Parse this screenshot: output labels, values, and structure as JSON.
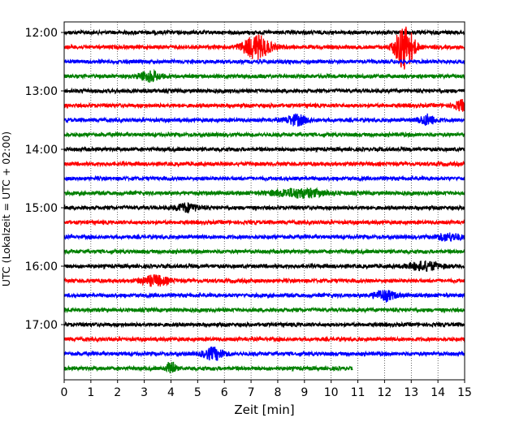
{
  "chart_data": {
    "type": "line",
    "xlabel": "Zeit  [min]",
    "ylabel": "UTC (Lokalzeit = UTC + 02:00)",
    "xlim": [
      0,
      15
    ],
    "x_ticks": [
      "0",
      "1",
      "2",
      "3",
      "4",
      "5",
      "6",
      "7",
      "8",
      "9",
      "10",
      "11",
      "12",
      "13",
      "14",
      "15"
    ],
    "y_ticks": [
      "12:00",
      "13:00",
      "14:00",
      "15:00",
      "16:00",
      "17:00"
    ],
    "grid": "vertical dotted",
    "trace_interval_min": 15,
    "start_time": "12:00",
    "last_trace_end_min": 10.8,
    "colors": [
      "#000000",
      "#ff0000",
      "#0000ff",
      "#008000"
    ],
    "traces": [
      {
        "start": "12:00",
        "color": "#000000",
        "events": []
      },
      {
        "start": "12:15",
        "color": "#ff0000",
        "events": [
          {
            "t": 7.2,
            "amp": 14,
            "w": 0.5
          },
          {
            "t": 12.75,
            "amp": 28,
            "w": 0.35
          }
        ]
      },
      {
        "start": "12:30",
        "color": "#0000ff",
        "events": []
      },
      {
        "start": "12:45",
        "color": "#008000",
        "events": [
          {
            "t": 3.2,
            "amp": 6,
            "w": 0.4
          }
        ]
      },
      {
        "start": "13:00",
        "color": "#000000",
        "events": []
      },
      {
        "start": "13:15",
        "color": "#ff0000",
        "events": [
          {
            "t": 14.9,
            "amp": 6,
            "w": 0.3
          }
        ]
      },
      {
        "start": "13:30",
        "color": "#0000ff",
        "events": [
          {
            "t": 8.7,
            "amp": 6,
            "w": 0.4
          },
          {
            "t": 13.6,
            "amp": 6,
            "w": 0.3
          }
        ]
      },
      {
        "start": "13:45",
        "color": "#008000",
        "events": []
      },
      {
        "start": "14:00",
        "color": "#000000",
        "events": []
      },
      {
        "start": "14:15",
        "color": "#ff0000",
        "events": []
      },
      {
        "start": "14:30",
        "color": "#0000ff",
        "events": []
      },
      {
        "start": "14:45",
        "color": "#008000",
        "events": [
          {
            "t": 8.8,
            "amp": 5,
            "w": 1.0
          }
        ]
      },
      {
        "start": "15:00",
        "color": "#000000",
        "events": [
          {
            "t": 4.6,
            "amp": 5,
            "w": 0.4
          }
        ]
      },
      {
        "start": "15:15",
        "color": "#ff0000",
        "events": []
      },
      {
        "start": "15:30",
        "color": "#0000ff",
        "events": [
          {
            "t": 14.4,
            "amp": 4,
            "w": 0.5
          }
        ]
      },
      {
        "start": "15:45",
        "color": "#008000",
        "events": []
      },
      {
        "start": "16:00",
        "color": "#000000",
        "events": [
          {
            "t": 13.5,
            "amp": 5,
            "w": 0.6
          }
        ]
      },
      {
        "start": "16:15",
        "color": "#ff0000",
        "events": [
          {
            "t": 3.4,
            "amp": 6,
            "w": 0.5
          }
        ]
      },
      {
        "start": "16:30",
        "color": "#0000ff",
        "events": [
          {
            "t": 12.0,
            "amp": 6,
            "w": 0.4
          }
        ]
      },
      {
        "start": "16:45",
        "color": "#008000",
        "events": []
      },
      {
        "start": "17:00",
        "color": "#000000",
        "events": []
      },
      {
        "start": "17:15",
        "color": "#ff0000",
        "events": []
      },
      {
        "start": "17:30",
        "color": "#0000ff",
        "events": [
          {
            "t": 5.6,
            "amp": 7,
            "w": 0.4
          }
        ]
      },
      {
        "start": "17:45",
        "color": "#008000",
        "events": [
          {
            "t": 4.0,
            "amp": 10,
            "w": 0.15
          }
        ],
        "end_min": 10.8
      }
    ]
  }
}
